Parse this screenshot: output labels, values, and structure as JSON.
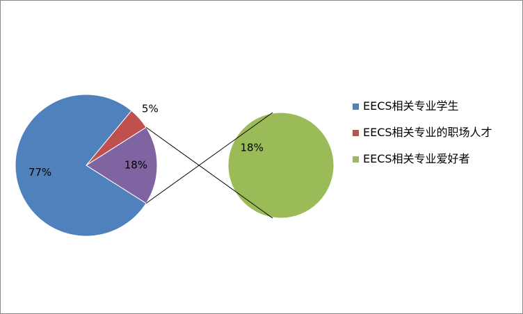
{
  "chart_data": {
    "type": "pie",
    "categories": [
      "EECS相关专业学生",
      "EECS相关专业的职场人才",
      "EECS相关专业爱好者"
    ],
    "values": [
      77,
      5,
      18
    ],
    "value_labels": [
      "77%",
      "5%",
      "18%"
    ],
    "colors": [
      "#4f81bd",
      "#c0504d",
      "#9bbb59"
    ],
    "split_count": 1,
    "other": {
      "value": 18,
      "value_label": "18%",
      "color": "#8064a2"
    },
    "legend": "right"
  }
}
